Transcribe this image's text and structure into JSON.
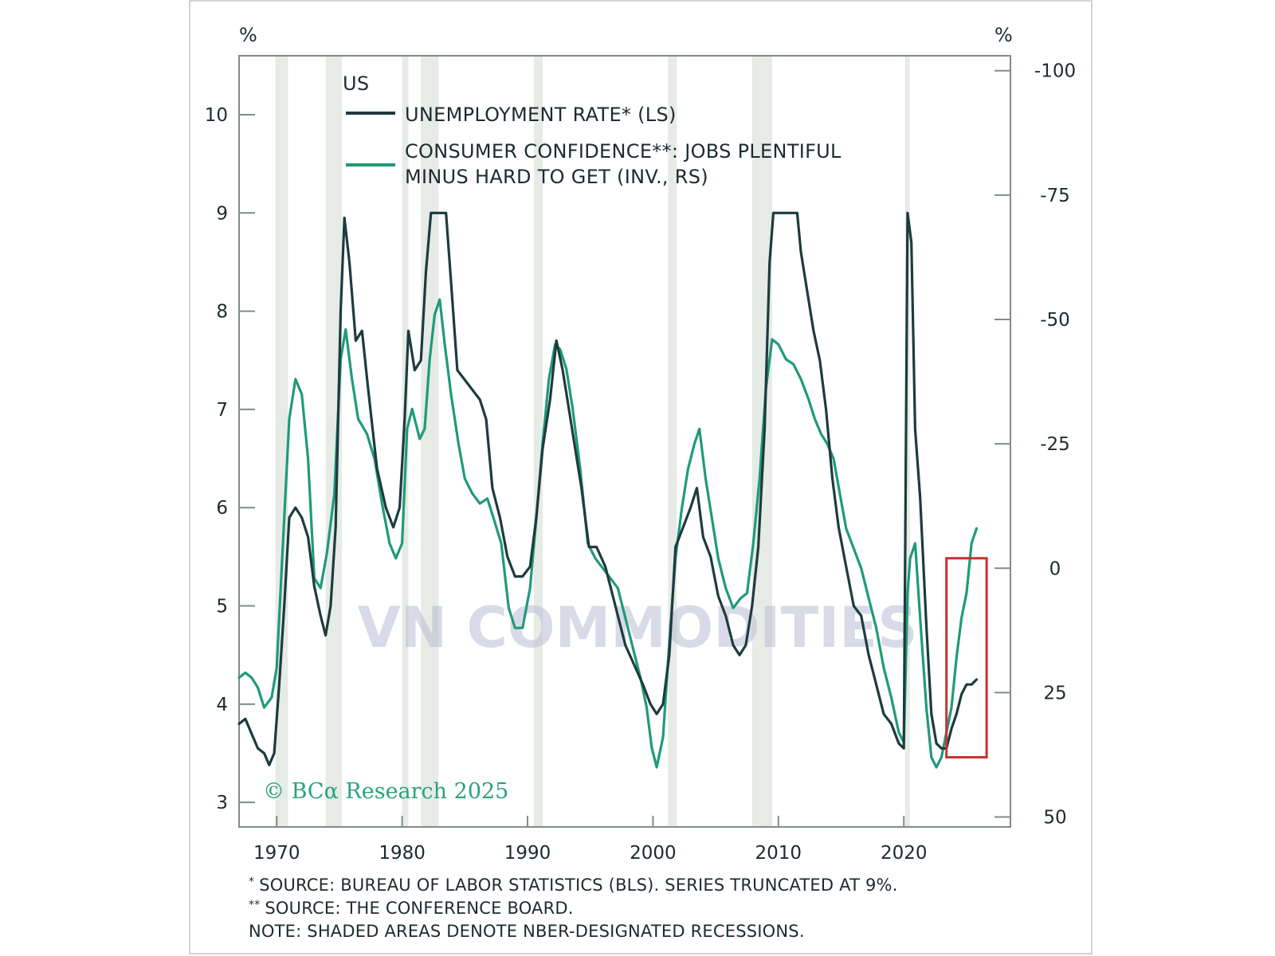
{
  "chart_data": {
    "type": "line",
    "left_unit": "%",
    "right_unit": "%",
    "x_ticks": [
      "1970",
      "1980",
      "1990",
      "2000",
      "2010",
      "2020"
    ],
    "left_ticks": [
      "3",
      "4",
      "5",
      "6",
      "7",
      "8",
      "9",
      "10"
    ],
    "right_ticks": [
      "-100",
      "-75",
      "-50",
      "-25",
      "0",
      "25",
      "50"
    ],
    "xlim": [
      1967,
      2028.5
    ],
    "left_ylim": [
      2.75,
      10.6
    ],
    "right_ylim": [
      52,
      -103
    ],
    "right_axis_inverted": true,
    "legend_title": "US",
    "grid": false,
    "recessions": [
      [
        1969.9,
        1970.9
      ],
      [
        1973.9,
        1975.2
      ],
      [
        1980.0,
        1980.5
      ],
      [
        1981.5,
        1982.9
      ],
      [
        1990.5,
        1991.2
      ],
      [
        2001.2,
        2001.9
      ],
      [
        2007.9,
        2009.5
      ],
      [
        2020.1,
        2020.4
      ]
    ],
    "series": [
      {
        "name": "UNEMPLOYMENT RATE* (LS)",
        "axis": "left",
        "color": "#1d3b3f",
        "points": [
          [
            1967.0,
            3.8
          ],
          [
            1967.5,
            3.85
          ],
          [
            1968.0,
            3.7
          ],
          [
            1968.5,
            3.55
          ],
          [
            1969.0,
            3.5
          ],
          [
            1969.4,
            3.38
          ],
          [
            1969.8,
            3.5
          ],
          [
            1970.2,
            4.2
          ],
          [
            1970.6,
            5.0
          ],
          [
            1971.0,
            5.9
          ],
          [
            1971.5,
            6.0
          ],
          [
            1972.0,
            5.9
          ],
          [
            1972.5,
            5.7
          ],
          [
            1973.0,
            5.2
          ],
          [
            1973.5,
            4.9
          ],
          [
            1973.9,
            4.7
          ],
          [
            1974.3,
            5.0
          ],
          [
            1974.7,
            5.8
          ],
          [
            1975.1,
            8.0
          ],
          [
            1975.4,
            8.95
          ],
          [
            1975.8,
            8.5
          ],
          [
            1976.3,
            7.7
          ],
          [
            1976.8,
            7.8
          ],
          [
            1977.3,
            7.2
          ],
          [
            1978.0,
            6.4
          ],
          [
            1978.7,
            6.0
          ],
          [
            1979.3,
            5.8
          ],
          [
            1979.8,
            6.0
          ],
          [
            1980.2,
            6.9
          ],
          [
            1980.5,
            7.8
          ],
          [
            1981.0,
            7.4
          ],
          [
            1981.5,
            7.5
          ],
          [
            1981.9,
            8.4
          ],
          [
            1982.3,
            9.0
          ],
          [
            1983.5,
            9.0
          ],
          [
            1983.9,
            8.3
          ],
          [
            1984.4,
            7.4
          ],
          [
            1985.0,
            7.3
          ],
          [
            1985.6,
            7.2
          ],
          [
            1986.2,
            7.1
          ],
          [
            1986.7,
            6.9
          ],
          [
            1987.2,
            6.2
          ],
          [
            1987.8,
            5.9
          ],
          [
            1988.4,
            5.5
          ],
          [
            1989.0,
            5.3
          ],
          [
            1989.6,
            5.3
          ],
          [
            1990.2,
            5.4
          ],
          [
            1990.7,
            5.9
          ],
          [
            1991.2,
            6.6
          ],
          [
            1991.8,
            7.1
          ],
          [
            1992.3,
            7.7
          ],
          [
            1992.8,
            7.4
          ],
          [
            1993.3,
            7.0
          ],
          [
            1993.8,
            6.6
          ],
          [
            1994.3,
            6.2
          ],
          [
            1994.9,
            5.6
          ],
          [
            1995.5,
            5.6
          ],
          [
            1996.2,
            5.4
          ],
          [
            1997.0,
            5.0
          ],
          [
            1997.8,
            4.6
          ],
          [
            1998.5,
            4.4
          ],
          [
            1999.2,
            4.2
          ],
          [
            1999.8,
            4.0
          ],
          [
            2000.3,
            3.9
          ],
          [
            2000.8,
            4.0
          ],
          [
            2001.3,
            4.5
          ],
          [
            2001.8,
            5.6
          ],
          [
            2002.4,
            5.8
          ],
          [
            2003.0,
            6.0
          ],
          [
            2003.5,
            6.2
          ],
          [
            2004.0,
            5.7
          ],
          [
            2004.6,
            5.5
          ],
          [
            2005.2,
            5.1
          ],
          [
            2005.8,
            4.9
          ],
          [
            2006.4,
            4.6
          ],
          [
            2006.9,
            4.5
          ],
          [
            2007.4,
            4.6
          ],
          [
            2007.9,
            5.0
          ],
          [
            2008.4,
            5.6
          ],
          [
            2008.9,
            6.8
          ],
          [
            2009.3,
            8.5
          ],
          [
            2009.6,
            9.0
          ],
          [
            2010.8,
            9.0
          ],
          [
            2011.5,
            9.0
          ],
          [
            2011.8,
            8.6
          ],
          [
            2012.3,
            8.2
          ],
          [
            2012.8,
            7.8
          ],
          [
            2013.3,
            7.5
          ],
          [
            2013.8,
            7.0
          ],
          [
            2014.3,
            6.3
          ],
          [
            2014.8,
            5.8
          ],
          [
            2015.4,
            5.4
          ],
          [
            2016.0,
            5.0
          ],
          [
            2016.6,
            4.9
          ],
          [
            2017.2,
            4.5
          ],
          [
            2017.8,
            4.2
          ],
          [
            2018.4,
            3.9
          ],
          [
            2019.0,
            3.8
          ],
          [
            2019.6,
            3.6
          ],
          [
            2020.0,
            3.55
          ],
          [
            2020.3,
            9.0
          ],
          [
            2020.6,
            8.7
          ],
          [
            2020.9,
            6.8
          ],
          [
            2021.3,
            6.1
          ],
          [
            2021.8,
            4.8
          ],
          [
            2022.2,
            3.9
          ],
          [
            2022.6,
            3.6
          ],
          [
            2023.0,
            3.55
          ],
          [
            2023.4,
            3.55
          ],
          [
            2023.8,
            3.75
          ],
          [
            2024.2,
            3.9
          ],
          [
            2024.6,
            4.1
          ],
          [
            2025.0,
            4.2
          ],
          [
            2025.4,
            4.2
          ],
          [
            2025.8,
            4.25
          ]
        ]
      },
      {
        "name": "CONSUMER CONFIDENCE**: JOBS PLENTIFUL MINUS HARD TO GET (INV., RS)",
        "axis": "right",
        "color": "#1f9a7a",
        "points": [
          [
            1967.0,
            22
          ],
          [
            1967.5,
            21
          ],
          [
            1968.0,
            22
          ],
          [
            1968.5,
            24
          ],
          [
            1969.0,
            28
          ],
          [
            1969.6,
            26
          ],
          [
            1970.0,
            20
          ],
          [
            1970.5,
            -5
          ],
          [
            1971.0,
            -30
          ],
          [
            1971.5,
            -38
          ],
          [
            1972.0,
            -35
          ],
          [
            1972.5,
            -22
          ],
          [
            1973.0,
            2
          ],
          [
            1973.5,
            4
          ],
          [
            1974.0,
            -3
          ],
          [
            1974.6,
            -15
          ],
          [
            1975.1,
            -42
          ],
          [
            1975.5,
            -48
          ],
          [
            1976.0,
            -38
          ],
          [
            1976.5,
            -30
          ],
          [
            1977.2,
            -27
          ],
          [
            1977.8,
            -22
          ],
          [
            1978.4,
            -13
          ],
          [
            1979.0,
            -5
          ],
          [
            1979.5,
            -2
          ],
          [
            1980.0,
            -5
          ],
          [
            1980.4,
            -28
          ],
          [
            1980.8,
            -32
          ],
          [
            1981.4,
            -26
          ],
          [
            1981.8,
            -28
          ],
          [
            1982.2,
            -42
          ],
          [
            1982.6,
            -51
          ],
          [
            1983.0,
            -54
          ],
          [
            1983.4,
            -45
          ],
          [
            1983.9,
            -35
          ],
          [
            1984.5,
            -25
          ],
          [
            1985.0,
            -18
          ],
          [
            1985.6,
            -15
          ],
          [
            1986.2,
            -13
          ],
          [
            1986.8,
            -14
          ],
          [
            1987.3,
            -10
          ],
          [
            1987.9,
            -5
          ],
          [
            1988.5,
            8
          ],
          [
            1989.0,
            12
          ],
          [
            1989.6,
            12
          ],
          [
            1990.2,
            4
          ],
          [
            1990.7,
            -10
          ],
          [
            1991.2,
            -25
          ],
          [
            1991.7,
            -38
          ],
          [
            1992.2,
            -45
          ],
          [
            1992.6,
            -44
          ],
          [
            1993.1,
            -40
          ],
          [
            1993.6,
            -32
          ],
          [
            1994.2,
            -20
          ],
          [
            1994.8,
            -5
          ],
          [
            1995.4,
            -2
          ],
          [
            1996.0,
            0
          ],
          [
            1996.6,
            2
          ],
          [
            1997.2,
            4
          ],
          [
            1997.8,
            10
          ],
          [
            1998.4,
            16
          ],
          [
            1999.0,
            22
          ],
          [
            1999.5,
            28
          ],
          [
            1999.9,
            36
          ],
          [
            2000.3,
            40
          ],
          [
            2000.8,
            34
          ],
          [
            2001.3,
            15
          ],
          [
            2001.8,
            -2
          ],
          [
            2002.3,
            -12
          ],
          [
            2002.8,
            -20
          ],
          [
            2003.3,
            -25
          ],
          [
            2003.7,
            -28
          ],
          [
            2004.2,
            -18
          ],
          [
            2004.7,
            -10
          ],
          [
            2005.2,
            -2
          ],
          [
            2005.8,
            4
          ],
          [
            2006.4,
            8
          ],
          [
            2007.0,
            6
          ],
          [
            2007.5,
            5
          ],
          [
            2008.0,
            -5
          ],
          [
            2008.5,
            -18
          ],
          [
            2009.0,
            -36
          ],
          [
            2009.5,
            -46
          ],
          [
            2010.0,
            -45
          ],
          [
            2010.6,
            -42
          ],
          [
            2011.2,
            -41
          ],
          [
            2011.8,
            -38
          ],
          [
            2012.4,
            -34
          ],
          [
            2012.9,
            -30
          ],
          [
            2013.4,
            -27
          ],
          [
            2013.9,
            -25
          ],
          [
            2014.4,
            -22
          ],
          [
            2014.9,
            -15
          ],
          [
            2015.4,
            -8
          ],
          [
            2016.0,
            -4
          ],
          [
            2016.6,
            0
          ],
          [
            2017.2,
            6
          ],
          [
            2017.8,
            12
          ],
          [
            2018.4,
            20
          ],
          [
            2019.0,
            26
          ],
          [
            2019.6,
            33
          ],
          [
            2020.0,
            35
          ],
          [
            2020.3,
            5
          ],
          [
            2020.5,
            -2
          ],
          [
            2020.9,
            -5
          ],
          [
            2021.3,
            10
          ],
          [
            2021.8,
            28
          ],
          [
            2022.2,
            38
          ],
          [
            2022.6,
            40
          ],
          [
            2023.0,
            38
          ],
          [
            2023.4,
            33
          ],
          [
            2023.8,
            28
          ],
          [
            2024.2,
            18
          ],
          [
            2024.6,
            10
          ],
          [
            2025.0,
            5
          ],
          [
            2025.4,
            -5
          ],
          [
            2025.8,
            -8
          ]
        ]
      }
    ],
    "watermark": "VN COMMODITIES",
    "copyright": "© BCα Research 2025",
    "highlight_box": {
      "x_range": [
        2023.4,
        2026.6
      ],
      "right_range": [
        -2,
        38
      ],
      "color": "#c8302e"
    }
  },
  "footnotes": {
    "note1_mark": "*",
    "note1": "SOURCE: BUREAU OF LABOR STATISTICS (BLS). SERIES TRUNCATED AT 9%.",
    "note2_mark": "**",
    "note2": "SOURCE: THE CONFERENCE BOARD.",
    "note3": "NOTE: SHADED AREAS DENOTE NBER-DESIGNATED RECESSIONS."
  },
  "colors": {
    "unemployment": "#1d3b3f",
    "confidence": "#1f9a7a",
    "recession_shade": "#e6ebe6",
    "frame": "#7f8c8e",
    "highlight": "#c8302e"
  }
}
